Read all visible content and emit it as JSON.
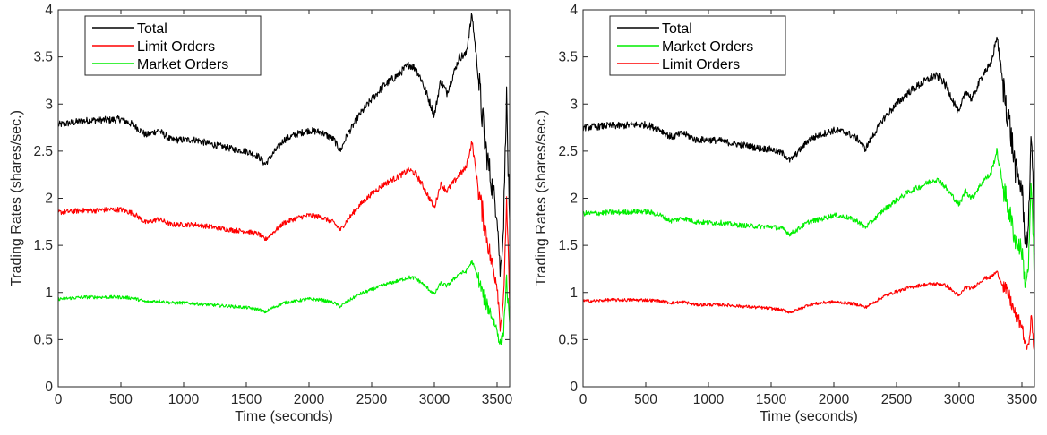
{
  "chart_data": [
    {
      "type": "line",
      "title": "",
      "xlabel": "Time (seconds)",
      "ylabel": "Trading Rates (shares/sec.)",
      "xlim": [
        0,
        3600
      ],
      "ylim": [
        0,
        4
      ],
      "xticks": [
        "0",
        "500",
        "1000",
        "1500",
        "2000",
        "2500",
        "3000",
        "3500"
      ],
      "yticks": [
        "0",
        "0.5",
        "1",
        "1.5",
        "2",
        "2.5",
        "3",
        "3.5",
        "4"
      ],
      "legend_position": "top-left",
      "grid": false,
      "x": [
        0,
        100,
        200,
        300,
        400,
        500,
        600,
        700,
        800,
        900,
        1000,
        1100,
        1200,
        1300,
        1400,
        1500,
        1600,
        1650,
        1700,
        1800,
        1900,
        2000,
        2100,
        2200,
        2250,
        2300,
        2400,
        2500,
        2600,
        2700,
        2800,
        2850,
        2900,
        3000,
        3050,
        3100,
        3200,
        3250,
        3300,
        3350,
        3400,
        3450,
        3500,
        3525,
        3550,
        3575,
        3600
      ],
      "series": [
        {
          "name": "Total",
          "color": "#000000",
          "values": [
            2.78,
            2.8,
            2.82,
            2.83,
            2.83,
            2.84,
            2.78,
            2.67,
            2.72,
            2.62,
            2.62,
            2.62,
            2.58,
            2.55,
            2.52,
            2.5,
            2.44,
            2.36,
            2.45,
            2.62,
            2.68,
            2.72,
            2.7,
            2.62,
            2.5,
            2.66,
            2.88,
            3.05,
            3.2,
            3.3,
            3.42,
            3.38,
            3.25,
            2.88,
            3.25,
            3.12,
            3.5,
            3.52,
            3.95,
            3.3,
            2.62,
            2.2,
            1.85,
            1.2,
            1.65,
            3.1,
            1.6
          ]
        },
        {
          "name": "Limit Orders",
          "color": "#ff0000",
          "values": [
            1.85,
            1.86,
            1.87,
            1.87,
            1.88,
            1.88,
            1.84,
            1.74,
            1.78,
            1.72,
            1.72,
            1.72,
            1.7,
            1.68,
            1.66,
            1.65,
            1.62,
            1.56,
            1.62,
            1.74,
            1.79,
            1.82,
            1.8,
            1.74,
            1.66,
            1.76,
            1.92,
            2.05,
            2.15,
            2.22,
            2.3,
            2.26,
            2.15,
            1.9,
            2.15,
            2.08,
            2.25,
            2.32,
            2.6,
            2.1,
            1.72,
            1.35,
            1.1,
            0.65,
            0.85,
            1.95,
            0.9
          ]
        },
        {
          "name": "Market Orders",
          "color": "#00ee00",
          "values": [
            0.93,
            0.94,
            0.95,
            0.95,
            0.95,
            0.95,
            0.94,
            0.9,
            0.91,
            0.89,
            0.89,
            0.88,
            0.87,
            0.86,
            0.85,
            0.84,
            0.82,
            0.79,
            0.83,
            0.89,
            0.91,
            0.93,
            0.92,
            0.89,
            0.85,
            0.9,
            0.98,
            1.03,
            1.08,
            1.12,
            1.16,
            1.15,
            1.1,
            0.98,
            1.1,
            1.07,
            1.2,
            1.22,
            1.33,
            1.15,
            0.92,
            0.78,
            0.6,
            0.45,
            0.55,
            1.15,
            0.6
          ]
        }
      ]
    },
    {
      "type": "line",
      "title": "",
      "xlabel": "Time (seconds)",
      "ylabel": "Trading Rates (shares/sec.)",
      "xlim": [
        0,
        3600
      ],
      "ylim": [
        0,
        4
      ],
      "xticks": [
        "0",
        "500",
        "1000",
        "1500",
        "2000",
        "2500",
        "3000",
        "3500"
      ],
      "yticks": [
        "0",
        "0.5",
        "1",
        "1.5",
        "2",
        "2.5",
        "3",
        "3.5",
        "4"
      ],
      "legend_position": "top-left",
      "grid": false,
      "x": [
        0,
        100,
        200,
        300,
        400,
        500,
        600,
        700,
        800,
        900,
        1000,
        1100,
        1200,
        1300,
        1400,
        1500,
        1600,
        1650,
        1700,
        1800,
        1900,
        2000,
        2100,
        2200,
        2250,
        2300,
        2400,
        2500,
        2600,
        2700,
        2800,
        2850,
        2900,
        3000,
        3050,
        3100,
        3200,
        3250,
        3300,
        3350,
        3400,
        3450,
        3500,
        3525,
        3550,
        3575,
        3600
      ],
      "series": [
        {
          "name": "Total",
          "color": "#000000",
          "values": [
            2.75,
            2.76,
            2.77,
            2.77,
            2.78,
            2.78,
            2.74,
            2.65,
            2.69,
            2.62,
            2.62,
            2.61,
            2.58,
            2.56,
            2.53,
            2.52,
            2.47,
            2.4,
            2.47,
            2.62,
            2.68,
            2.72,
            2.7,
            2.62,
            2.52,
            2.64,
            2.85,
            3.0,
            3.13,
            3.22,
            3.3,
            3.28,
            3.18,
            2.9,
            3.15,
            3.05,
            3.35,
            3.4,
            3.72,
            3.2,
            2.8,
            2.3,
            2.1,
            1.6,
            1.55,
            2.8,
            1.5
          ]
        },
        {
          "name": "Market Orders",
          "color": "#00ee00",
          "values": [
            1.84,
            1.84,
            1.85,
            1.85,
            1.86,
            1.86,
            1.83,
            1.76,
            1.79,
            1.75,
            1.74,
            1.74,
            1.72,
            1.71,
            1.7,
            1.7,
            1.67,
            1.62,
            1.66,
            1.75,
            1.78,
            1.82,
            1.8,
            1.75,
            1.69,
            1.75,
            1.88,
            1.98,
            2.07,
            2.13,
            2.2,
            2.18,
            2.1,
            1.93,
            2.08,
            2.0,
            2.2,
            2.25,
            2.5,
            2.12,
            1.85,
            1.55,
            1.45,
            1.1,
            1.2,
            2.2,
            1.1
          ]
        },
        {
          "name": "Limit Orders",
          "color": "#ff0000",
          "values": [
            0.91,
            0.91,
            0.92,
            0.92,
            0.92,
            0.92,
            0.91,
            0.89,
            0.9,
            0.87,
            0.87,
            0.87,
            0.86,
            0.85,
            0.84,
            0.83,
            0.81,
            0.79,
            0.81,
            0.87,
            0.89,
            0.9,
            0.89,
            0.87,
            0.84,
            0.88,
            0.96,
            1.01,
            1.05,
            1.08,
            1.09,
            1.09,
            1.07,
            0.96,
            1.06,
            1.04,
            1.15,
            1.16,
            1.22,
            1.07,
            0.95,
            0.75,
            0.65,
            0.45,
            0.4,
            0.75,
            0.35
          ]
        }
      ]
    }
  ]
}
